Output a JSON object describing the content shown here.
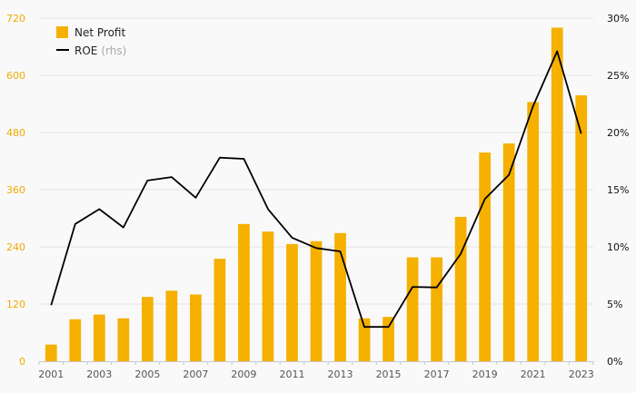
{
  "chart_data": {
    "type": "bar+line",
    "title": "",
    "xlabel": "",
    "ylabel": "",
    "categories": [
      "2001",
      "2002",
      "2003",
      "2004",
      "2005",
      "2006",
      "2007",
      "2008",
      "2009",
      "2010",
      "2011",
      "2012",
      "2013",
      "2014",
      "2015",
      "2016",
      "2017",
      "2018",
      "2019",
      "2020",
      "2021",
      "2022",
      "2023"
    ],
    "x_tick_labels": [
      "2001",
      "2003",
      "2005",
      "2007",
      "2009",
      "2011",
      "2013",
      "2015",
      "2017",
      "2019",
      "2021",
      "2023"
    ],
    "series": [
      {
        "name": "Net Profit",
        "type": "bar",
        "axis": "left",
        "color": "#f5b000",
        "values": [
          35,
          88,
          98,
          90,
          135,
          148,
          140,
          215,
          288,
          272,
          246,
          252,
          269,
          90,
          93,
          218,
          218,
          303,
          438,
          457,
          544,
          700,
          558
        ]
      },
      {
        "name": "ROE",
        "name_note": "(rhs)",
        "type": "line",
        "axis": "right",
        "color": "#000000",
        "values": [
          4.9,
          12.0,
          13.3,
          11.7,
          15.8,
          16.1,
          14.3,
          17.8,
          17.7,
          13.3,
          10.8,
          9.9,
          9.6,
          3.0,
          3.0,
          6.5,
          6.45,
          9.4,
          14.2,
          16.3,
          22.3,
          27.1,
          19.9
        ]
      }
    ],
    "y_left": {
      "min": 0,
      "max": 720,
      "ticks": [
        "0",
        "120",
        "240",
        "360",
        "480",
        "600",
        "720"
      ],
      "tick_color": "#f2a900"
    },
    "y_right": {
      "min": 0,
      "max": 30,
      "ticks": [
        "0%",
        "5%",
        "10%",
        "15%",
        "20%",
        "25%",
        "30%"
      ]
    },
    "grid": true,
    "legend": {
      "position": "top-left"
    }
  }
}
